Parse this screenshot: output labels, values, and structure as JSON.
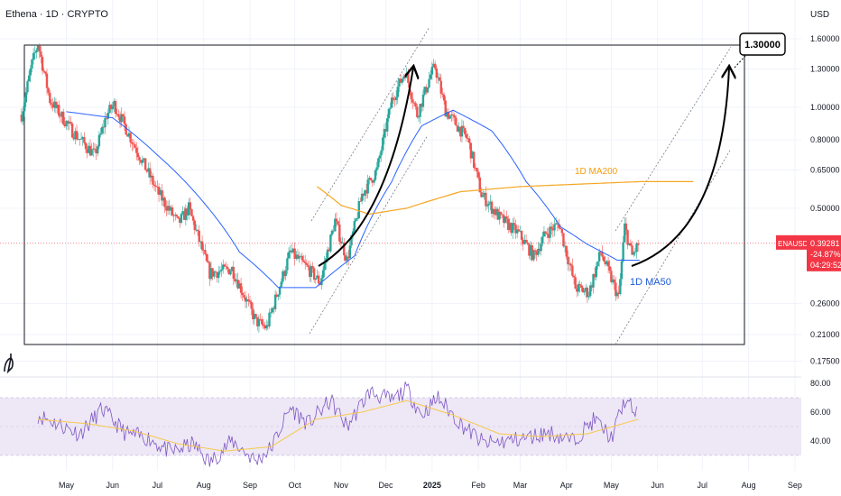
{
  "header": {
    "title": "Ethena · 1D · CRYPTO",
    "currency": "USD"
  },
  "colors": {
    "up": "#26a69a",
    "down": "#ef5350",
    "ma50": "#2962ff",
    "ma200": "#f5a623",
    "rsi": "#7e57c2",
    "rsi_ma": "#f7c948",
    "rsi_band": "#ede7f6",
    "price_line": "#f23645"
  },
  "chart_data": [
    {
      "type": "candlestick",
      "title": "",
      "y_scale": "log",
      "y_ticks": [
        "1.60000",
        "1.30000",
        "1.00000",
        "0.80000",
        "0.65000",
        "0.50000",
        "0.26000",
        "0.21000",
        "0.17500"
      ],
      "x_ticks": [
        "May",
        "Jun",
        "Jul",
        "Aug",
        "Sep",
        "Oct",
        "Nov",
        "Dec",
        "2025",
        "Feb",
        "Mar",
        "Apr",
        "May",
        "Jun",
        "Jul",
        "Aug",
        "Sep"
      ],
      "price_anchors": [
        [
          "2024-04-01",
          0.95
        ],
        [
          "2024-04-08",
          1.35
        ],
        [
          "2024-04-12",
          1.55
        ],
        [
          "2024-04-20",
          1.05
        ],
        [
          "2024-05-05",
          0.85
        ],
        [
          "2024-05-20",
          0.72
        ],
        [
          "2024-05-28",
          0.95
        ],
        [
          "2024-06-02",
          1.02
        ],
        [
          "2024-06-15",
          0.78
        ],
        [
          "2024-07-01",
          0.56
        ],
        [
          "2024-07-15",
          0.45
        ],
        [
          "2024-07-22",
          0.5
        ],
        [
          "2024-08-05",
          0.32
        ],
        [
          "2024-08-20",
          0.33
        ],
        [
          "2024-09-05",
          0.23
        ],
        [
          "2024-09-12",
          0.22
        ],
        [
          "2024-09-28",
          0.37
        ],
        [
          "2024-10-10",
          0.33
        ],
        [
          "2024-10-18",
          0.3
        ],
        [
          "2024-10-28",
          0.46
        ],
        [
          "2024-11-05",
          0.35
        ],
        [
          "2024-11-15",
          0.55
        ],
        [
          "2024-11-25",
          0.65
        ],
        [
          "2024-12-05",
          1.05
        ],
        [
          "2024-12-14",
          1.28
        ],
        [
          "2024-12-22",
          0.95
        ],
        [
          "2024-12-31",
          1.25
        ],
        [
          "2025-01-03",
          1.32
        ],
        [
          "2025-01-10",
          0.98
        ],
        [
          "2025-01-25",
          0.8
        ],
        [
          "2025-02-03",
          0.55
        ],
        [
          "2025-02-15",
          0.47
        ],
        [
          "2025-02-28",
          0.42
        ],
        [
          "2025-03-10",
          0.36
        ],
        [
          "2025-03-18",
          0.42
        ],
        [
          "2025-03-27",
          0.45
        ],
        [
          "2025-04-07",
          0.29
        ],
        [
          "2025-04-16",
          0.28
        ],
        [
          "2025-04-24",
          0.37
        ],
        [
          "2025-05-06",
          0.27
        ],
        [
          "2025-05-10",
          0.44
        ],
        [
          "2025-05-15",
          0.36
        ],
        [
          "2025-05-19",
          0.39
        ]
      ],
      "series": [
        {
          "name": "1D MA50",
          "anchors": [
            [
              "2024-05-01",
              0.97
            ],
            [
              "2024-06-01",
              0.93
            ],
            [
              "2024-07-01",
              0.72
            ],
            [
              "2024-08-01",
              0.52
            ],
            [
              "2024-08-25",
              0.37
            ],
            [
              "2024-09-20",
              0.29
            ],
            [
              "2024-10-15",
              0.29
            ],
            [
              "2024-11-10",
              0.36
            ],
            [
              "2024-12-05",
              0.6
            ],
            [
              "2024-12-25",
              0.88
            ],
            [
              "2025-01-15",
              0.98
            ],
            [
              "2025-02-10",
              0.85
            ],
            [
              "2025-03-05",
              0.6
            ],
            [
              "2025-03-28",
              0.44
            ],
            [
              "2025-04-15",
              0.39
            ],
            [
              "2025-05-05",
              0.35
            ],
            [
              "2025-05-20",
              0.35
            ]
          ]
        },
        {
          "name": "1D MA200",
          "anchors": [
            [
              "2024-10-16",
              0.58
            ],
            [
              "2024-11-01",
              0.51
            ],
            [
              "2024-11-20",
              0.48
            ],
            [
              "2024-12-15",
              0.5
            ],
            [
              "2025-01-20",
              0.56
            ],
            [
              "2025-03-01",
              0.58
            ],
            [
              "2025-04-10",
              0.59
            ],
            [
              "2025-05-20",
              0.6
            ],
            [
              "2025-06-25",
              0.6
            ]
          ]
        }
      ],
      "annotations": {
        "target_label": "1.30000",
        "ma200_label": "1D MA200",
        "ma50_label": "1D MA50"
      },
      "last_price": {
        "symbol": "ENAUSD",
        "price": "0.39281",
        "change": "-24.87%",
        "countdown": "04:29:52",
        "value": 0.39281
      }
    },
    {
      "type": "line",
      "title": "",
      "y_ticks": [
        "80.00",
        "60.00",
        "40.00"
      ],
      "band": [
        30,
        70
      ],
      "series": [
        {
          "name": "",
          "anchors": [
            [
              "2024-04-12",
              58
            ],
            [
              "2024-04-25",
              52
            ],
            [
              "2024-05-10",
              45
            ],
            [
              "2024-05-25",
              62
            ],
            [
              "2024-06-10",
              45
            ],
            [
              "2024-06-25",
              42
            ],
            [
              "2024-07-10",
              32
            ],
            [
              "2024-07-25",
              38
            ],
            [
              "2024-08-05",
              25
            ],
            [
              "2024-08-20",
              40
            ],
            [
              "2024-09-05",
              26
            ],
            [
              "2024-09-15",
              35
            ],
            [
              "2024-09-28",
              63
            ],
            [
              "2024-10-10",
              52
            ],
            [
              "2024-10-25",
              68
            ],
            [
              "2024-11-05",
              50
            ],
            [
              "2024-11-20",
              74
            ],
            [
              "2024-12-05",
              68
            ],
            [
              "2024-12-15",
              76
            ],
            [
              "2024-12-25",
              58
            ],
            [
              "2025-01-05",
              70
            ],
            [
              "2025-01-20",
              52
            ],
            [
              "2025-02-05",
              38
            ],
            [
              "2025-02-20",
              40
            ],
            [
              "2025-03-05",
              42
            ],
            [
              "2025-03-20",
              46
            ],
            [
              "2025-04-05",
              40
            ],
            [
              "2025-04-20",
              55
            ],
            [
              "2025-05-01",
              42
            ],
            [
              "2025-05-10",
              68
            ],
            [
              "2025-05-19",
              58
            ]
          ]
        },
        {
          "name": "",
          "anchors": [
            [
              "2024-04-12",
              55
            ],
            [
              "2024-05-15",
              52
            ],
            [
              "2024-06-15",
              47
            ],
            [
              "2024-07-15",
              38
            ],
            [
              "2024-08-15",
              33
            ],
            [
              "2024-09-15",
              36
            ],
            [
              "2024-10-15",
              55
            ],
            [
              "2024-11-15",
              60
            ],
            [
              "2024-12-15",
              68
            ],
            [
              "2025-01-15",
              58
            ],
            [
              "2025-02-15",
              45
            ],
            [
              "2025-03-15",
              43
            ],
            [
              "2025-04-15",
              45
            ],
            [
              "2025-05-19",
              55
            ]
          ]
        }
      ]
    }
  ]
}
